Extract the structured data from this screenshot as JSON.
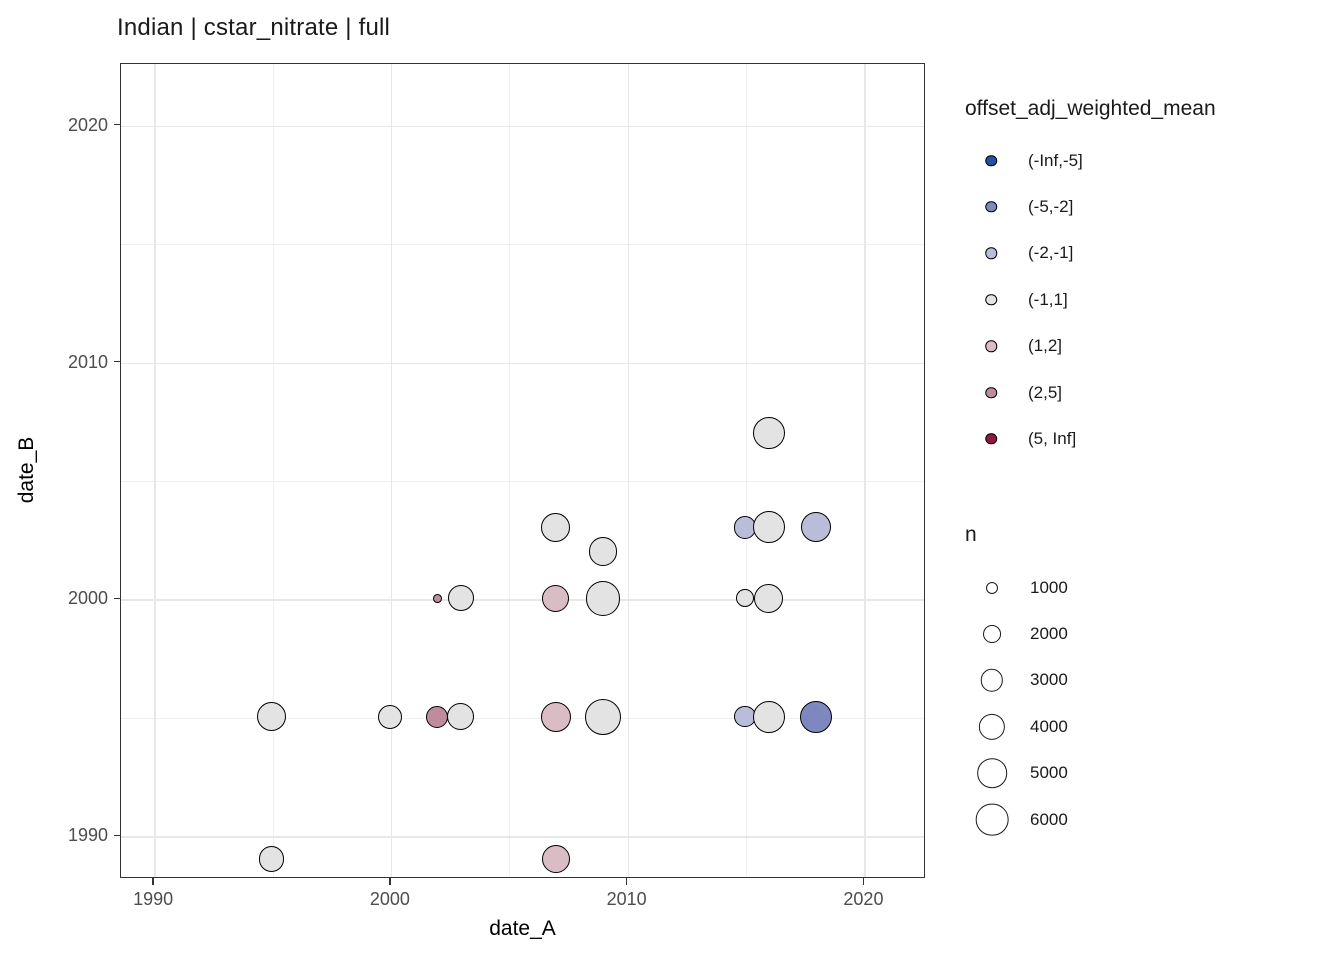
{
  "title": "Indian | cstar_nitrate | full",
  "chart_data": {
    "type": "scatter",
    "title": "Indian | cstar_nitrate | full",
    "xlabel": "date_A",
    "ylabel": "date_B",
    "xlim": [
      1988.6,
      2022.6
    ],
    "ylim": [
      1988.2,
      2022.6
    ],
    "x_ticks": [
      1990,
      2000,
      2010,
      2020
    ],
    "y_ticks": [
      1990,
      2000,
      2010,
      2020
    ],
    "x_minor": [
      1995,
      2005,
      2015
    ],
    "y_minor": [
      1995,
      2005,
      2015
    ],
    "grid": "on",
    "legend_position": "right",
    "color_legend": {
      "title": "offset_adj_weighted_mean",
      "bins": [
        {
          "label": "(-Inf,-5]",
          "color": "#2151A1"
        },
        {
          "label": "(-5,-2]",
          "color": "#7F87C1"
        },
        {
          "label": "(-2,-1]",
          "color": "#B9BDD9"
        },
        {
          "label": "(-1,1]",
          "color": "#E3E3E3"
        },
        {
          "label": "(1,2]",
          "color": "#DABCC4"
        },
        {
          "label": "(2,5]",
          "color": "#BE8C9C"
        },
        {
          "label": "(5, Inf]",
          "color": "#921843"
        }
      ]
    },
    "size_legend": {
      "title": "n",
      "values": [
        1000,
        2000,
        3000,
        4000,
        5000,
        6000
      ]
    },
    "points": [
      {
        "date_A": 1995,
        "date_B": 1989,
        "bin": "(-1,1]",
        "n": 3900
      },
      {
        "date_A": 2007,
        "date_B": 1989,
        "bin": "(1,2]",
        "n": 4500
      },
      {
        "date_A": 1995,
        "date_B": 1995,
        "bin": "(-1,1]",
        "n": 4800
      },
      {
        "date_A": 2000,
        "date_B": 1995,
        "bin": "(-1,1]",
        "n": 3400
      },
      {
        "date_A": 2002,
        "date_B": 1995,
        "bin": "(2,5]",
        "n": 2900
      },
      {
        "date_A": 2003,
        "date_B": 1995,
        "bin": "(-1,1]",
        "n": 4200
      },
      {
        "date_A": 2007,
        "date_B": 1995,
        "bin": "(1,2]",
        "n": 5100
      },
      {
        "date_A": 2009,
        "date_B": 1995,
        "bin": "(-1,1]",
        "n": 7200
      },
      {
        "date_A": 2015,
        "date_B": 1995,
        "bin": "(-2,-1]",
        "n": 2700
      },
      {
        "date_A": 2016,
        "date_B": 1995,
        "bin": "(-1,1]",
        "n": 5800
      },
      {
        "date_A": 2018,
        "date_B": 1995,
        "bin": "(-5,-2]",
        "n": 5800
      },
      {
        "date_A": 2002,
        "date_B": 2000,
        "bin": "(2,5]",
        "n": 600
      },
      {
        "date_A": 2003,
        "date_B": 2000,
        "bin": "(-1,1]",
        "n": 3900
      },
      {
        "date_A": 2007,
        "date_B": 2000,
        "bin": "(1,2]",
        "n": 4200
      },
      {
        "date_A": 2009,
        "date_B": 2000,
        "bin": "(-1,1]",
        "n": 6800
      },
      {
        "date_A": 2015,
        "date_B": 2000,
        "bin": "(-1,1]",
        "n": 2000
      },
      {
        "date_A": 2016,
        "date_B": 2000,
        "bin": "(-1,1]",
        "n": 4800
      },
      {
        "date_A": 2009,
        "date_B": 2002,
        "bin": "(-1,1]",
        "n": 4800
      },
      {
        "date_A": 2007,
        "date_B": 2003,
        "bin": "(-1,1]",
        "n": 4800
      },
      {
        "date_A": 2015,
        "date_B": 2003,
        "bin": "(-2,-1]",
        "n": 3100
      },
      {
        "date_A": 2016,
        "date_B": 2003,
        "bin": "(-1,1]",
        "n": 5800
      },
      {
        "date_A": 2018,
        "date_B": 2003,
        "bin": "(-2,-1]",
        "n": 5100
      },
      {
        "date_A": 2016,
        "date_B": 2007,
        "bin": "(-1,1]",
        "n": 5800
      }
    ]
  }
}
